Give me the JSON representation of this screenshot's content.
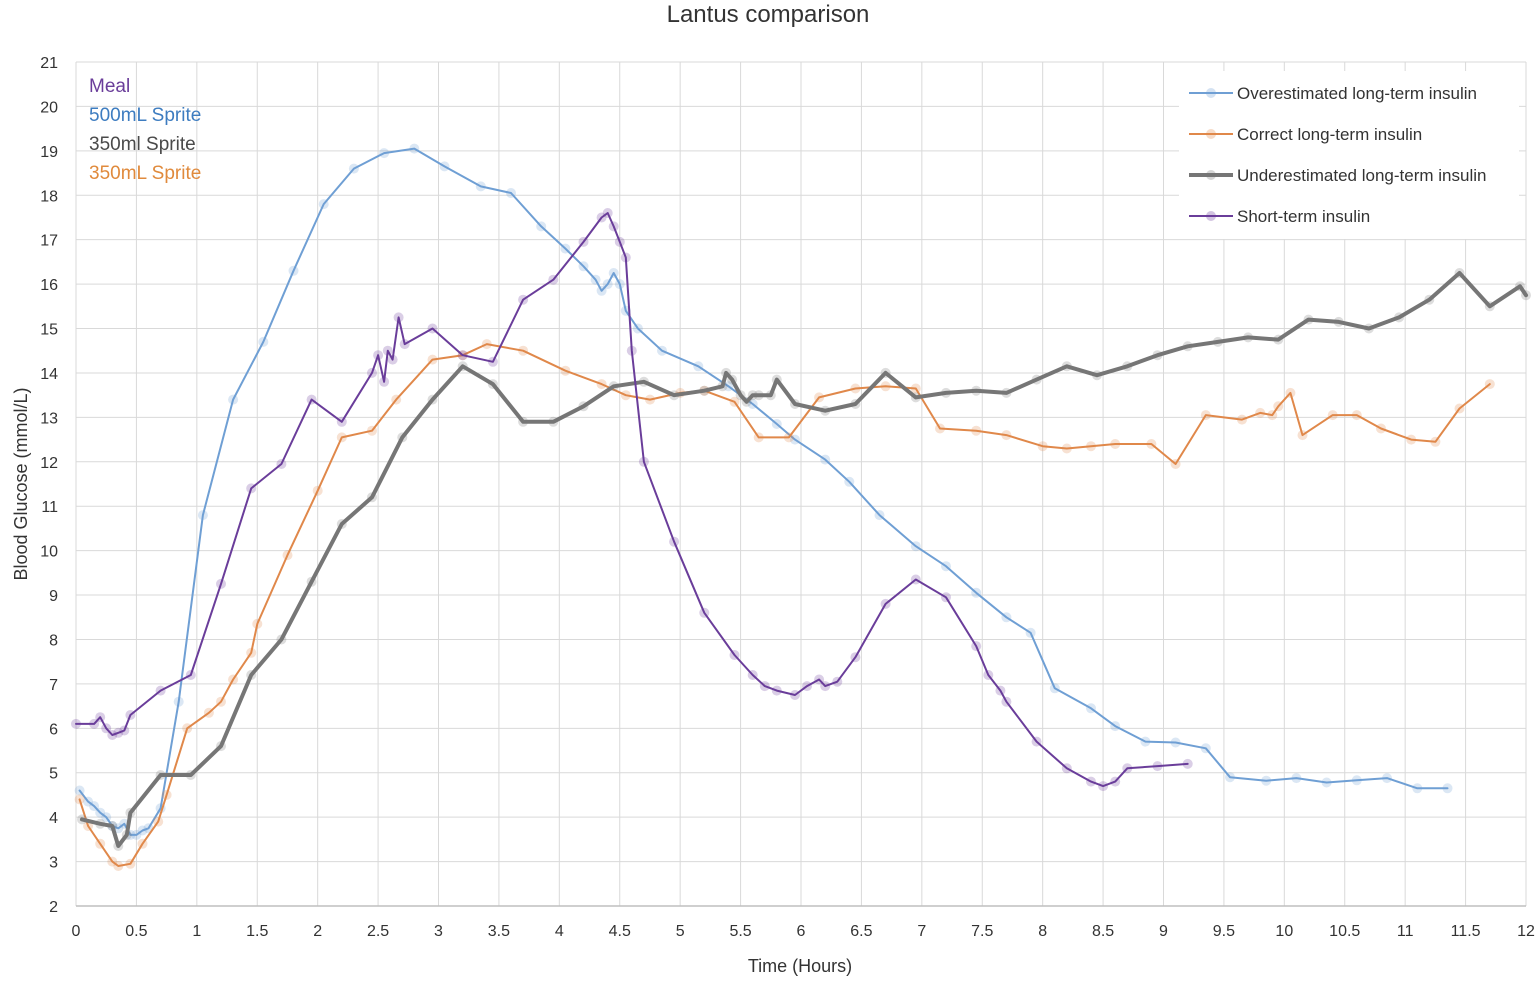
{
  "chart_data": {
    "type": "line",
    "title": "Lantus comparison",
    "xlabel": "Time (Hours)",
    "ylabel": "Blood Glucose (mmol/L)",
    "xlim": [
      0,
      12
    ],
    "ylim": [
      2,
      21
    ],
    "x_ticks": [
      "0",
      "0.5",
      "1",
      "1.5",
      "2",
      "2.5",
      "3",
      "3.5",
      "4",
      "4.5",
      "5",
      "5.5",
      "6",
      "6.5",
      "7",
      "7.5",
      "8",
      "8.5",
      "9",
      "9.5",
      "10",
      "10.5",
      "11",
      "11.5",
      "12"
    ],
    "y_ticks": [
      "2",
      "3",
      "4",
      "5",
      "6",
      "7",
      "8",
      "9",
      "10",
      "11",
      "12",
      "13",
      "14",
      "15",
      "16",
      "17",
      "18",
      "19",
      "20",
      "21"
    ],
    "grid": true,
    "legend_position": "top-right",
    "annotations": [
      {
        "text": "Meal",
        "color": "#6a3d9a"
      },
      {
        "text": "500mL Sprite",
        "color": "#3d7cc0"
      },
      {
        "text": "350ml Sprite",
        "color": "#4a4a4a"
      },
      {
        "text": "350mL Sprite",
        "color": "#e08a3c"
      }
    ],
    "series": [
      {
        "name": "Overestimated long-term insulin",
        "color": "#6f9fd4",
        "line_width": 2,
        "points": [
          [
            0.03,
            4.6
          ],
          [
            0.1,
            4.35
          ],
          [
            0.15,
            4.25
          ],
          [
            0.2,
            4.1
          ],
          [
            0.25,
            4.0
          ],
          [
            0.3,
            3.8
          ],
          [
            0.35,
            3.75
          ],
          [
            0.4,
            3.85
          ],
          [
            0.45,
            3.6
          ],
          [
            0.5,
            3.6
          ],
          [
            0.55,
            3.7
          ],
          [
            0.6,
            3.75
          ],
          [
            0.7,
            4.2
          ],
          [
            0.85,
            6.6
          ],
          [
            1.05,
            10.8
          ],
          [
            1.3,
            13.4
          ],
          [
            1.55,
            14.7
          ],
          [
            1.8,
            16.3
          ],
          [
            2.05,
            17.8
          ],
          [
            2.3,
            18.6
          ],
          [
            2.55,
            18.95
          ],
          [
            2.8,
            19.05
          ],
          [
            3.05,
            18.65
          ],
          [
            3.35,
            18.2
          ],
          [
            3.6,
            18.05
          ],
          [
            3.85,
            17.3
          ],
          [
            4.05,
            16.8
          ],
          [
            4.2,
            16.4
          ],
          [
            4.3,
            16.1
          ],
          [
            4.35,
            15.85
          ],
          [
            4.4,
            16.0
          ],
          [
            4.45,
            16.25
          ],
          [
            4.5,
            16.0
          ],
          [
            4.55,
            15.4
          ],
          [
            4.65,
            15.0
          ],
          [
            4.85,
            14.5
          ],
          [
            5.15,
            14.15
          ],
          [
            5.4,
            13.7
          ],
          [
            5.6,
            13.3
          ],
          [
            5.8,
            12.85
          ],
          [
            5.95,
            12.5
          ],
          [
            6.2,
            12.05
          ],
          [
            6.4,
            11.55
          ],
          [
            6.65,
            10.8
          ],
          [
            6.95,
            10.1
          ],
          [
            7.2,
            9.65
          ],
          [
            7.45,
            9.05
          ],
          [
            7.7,
            8.5
          ],
          [
            7.9,
            8.15
          ],
          [
            8.1,
            6.9
          ],
          [
            8.4,
            6.45
          ],
          [
            8.6,
            6.05
          ],
          [
            8.85,
            5.7
          ],
          [
            9.1,
            5.68
          ],
          [
            9.35,
            5.55
          ],
          [
            9.55,
            4.9
          ],
          [
            9.85,
            4.82
          ],
          [
            10.1,
            4.88
          ],
          [
            10.35,
            4.78
          ],
          [
            10.6,
            4.83
          ],
          [
            10.85,
            4.88
          ],
          [
            11.1,
            4.65
          ],
          [
            11.35,
            4.65
          ]
        ]
      },
      {
        "name": "Correct long-term insulin",
        "color": "#e0884a",
        "line_width": 2,
        "points": [
          [
            0.03,
            4.4
          ],
          [
            0.1,
            3.8
          ],
          [
            0.2,
            3.4
          ],
          [
            0.3,
            3.0
          ],
          [
            0.35,
            2.9
          ],
          [
            0.45,
            2.95
          ],
          [
            0.55,
            3.4
          ],
          [
            0.68,
            3.9
          ],
          [
            0.75,
            4.5
          ],
          [
            0.92,
            6.0
          ],
          [
            1.1,
            6.35
          ],
          [
            1.2,
            6.6
          ],
          [
            1.3,
            7.1
          ],
          [
            1.45,
            7.7
          ],
          [
            1.5,
            8.35
          ],
          [
            1.75,
            9.9
          ],
          [
            2.0,
            11.35
          ],
          [
            2.2,
            12.55
          ],
          [
            2.45,
            12.7
          ],
          [
            2.65,
            13.4
          ],
          [
            2.95,
            14.3
          ],
          [
            3.2,
            14.4
          ],
          [
            3.4,
            14.65
          ],
          [
            3.7,
            14.5
          ],
          [
            4.05,
            14.05
          ],
          [
            4.35,
            13.75
          ],
          [
            4.55,
            13.5
          ],
          [
            4.75,
            13.4
          ],
          [
            5.0,
            13.55
          ],
          [
            5.2,
            13.6
          ],
          [
            5.45,
            13.35
          ],
          [
            5.65,
            12.55
          ],
          [
            5.9,
            12.55
          ],
          [
            6.15,
            13.45
          ],
          [
            6.45,
            13.65
          ],
          [
            6.7,
            13.7
          ],
          [
            6.95,
            13.65
          ],
          [
            7.15,
            12.75
          ],
          [
            7.45,
            12.7
          ],
          [
            7.7,
            12.6
          ],
          [
            8.0,
            12.35
          ],
          [
            8.2,
            12.3
          ],
          [
            8.4,
            12.35
          ],
          [
            8.6,
            12.4
          ],
          [
            8.9,
            12.4
          ],
          [
            9.1,
            11.95
          ],
          [
            9.35,
            13.05
          ],
          [
            9.65,
            12.95
          ],
          [
            9.8,
            13.1
          ],
          [
            9.9,
            13.05
          ],
          [
            9.95,
            13.25
          ],
          [
            10.05,
            13.55
          ],
          [
            10.15,
            12.6
          ],
          [
            10.4,
            13.05
          ],
          [
            10.6,
            13.05
          ],
          [
            10.8,
            12.75
          ],
          [
            11.05,
            12.5
          ],
          [
            11.25,
            12.45
          ],
          [
            11.45,
            13.2
          ],
          [
            11.7,
            13.75
          ]
        ]
      },
      {
        "name": "Underestimated long-term insulin",
        "color": "#767676",
        "line_width": 4,
        "points": [
          [
            0.05,
            3.95
          ],
          [
            0.2,
            3.85
          ],
          [
            0.3,
            3.8
          ],
          [
            0.35,
            3.35
          ],
          [
            0.42,
            3.6
          ],
          [
            0.45,
            4.1
          ],
          [
            0.7,
            4.95
          ],
          [
            0.95,
            4.95
          ],
          [
            1.2,
            5.6
          ],
          [
            1.45,
            7.2
          ],
          [
            1.7,
            8.0
          ],
          [
            1.95,
            9.3
          ],
          [
            2.2,
            10.6
          ],
          [
            2.45,
            11.2
          ],
          [
            2.7,
            12.55
          ],
          [
            2.95,
            13.4
          ],
          [
            3.2,
            14.15
          ],
          [
            3.45,
            13.75
          ],
          [
            3.7,
            12.9
          ],
          [
            3.95,
            12.9
          ],
          [
            4.2,
            13.25
          ],
          [
            4.45,
            13.7
          ],
          [
            4.7,
            13.8
          ],
          [
            4.95,
            13.5
          ],
          [
            5.2,
            13.6
          ],
          [
            5.35,
            13.7
          ],
          [
            5.38,
            14.0
          ],
          [
            5.43,
            13.85
          ],
          [
            5.5,
            13.5
          ],
          [
            5.55,
            13.35
          ],
          [
            5.6,
            13.5
          ],
          [
            5.65,
            13.5
          ],
          [
            5.75,
            13.5
          ],
          [
            5.8,
            13.85
          ],
          [
            5.95,
            13.3
          ],
          [
            6.2,
            13.15
          ],
          [
            6.45,
            13.3
          ],
          [
            6.7,
            14.0
          ],
          [
            6.95,
            13.45
          ],
          [
            7.2,
            13.55
          ],
          [
            7.45,
            13.6
          ],
          [
            7.7,
            13.55
          ],
          [
            7.95,
            13.85
          ],
          [
            8.2,
            14.15
          ],
          [
            8.45,
            13.95
          ],
          [
            8.7,
            14.15
          ],
          [
            8.95,
            14.4
          ],
          [
            9.2,
            14.6
          ],
          [
            9.45,
            14.7
          ],
          [
            9.7,
            14.8
          ],
          [
            9.95,
            14.75
          ],
          [
            10.2,
            15.2
          ],
          [
            10.45,
            15.15
          ],
          [
            10.7,
            15.0
          ],
          [
            10.95,
            15.25
          ],
          [
            11.2,
            15.65
          ],
          [
            11.45,
            16.25
          ],
          [
            11.7,
            15.5
          ],
          [
            11.95,
            15.95
          ],
          [
            12.0,
            15.75
          ]
        ]
      },
      {
        "name": "Short-term insulin",
        "color": "#6a3d9a",
        "line_width": 2,
        "points": [
          [
            0.0,
            6.1
          ],
          [
            0.15,
            6.1
          ],
          [
            0.2,
            6.25
          ],
          [
            0.25,
            6.0
          ],
          [
            0.3,
            5.85
          ],
          [
            0.35,
            5.9
          ],
          [
            0.4,
            5.95
          ],
          [
            0.45,
            6.3
          ],
          [
            0.7,
            6.85
          ],
          [
            0.95,
            7.2
          ],
          [
            1.2,
            9.25
          ],
          [
            1.45,
            11.4
          ],
          [
            1.7,
            11.95
          ],
          [
            1.95,
            13.4
          ],
          [
            2.2,
            12.9
          ],
          [
            2.45,
            14.0
          ],
          [
            2.5,
            14.4
          ],
          [
            2.55,
            13.8
          ],
          [
            2.58,
            14.5
          ],
          [
            2.62,
            14.3
          ],
          [
            2.67,
            15.25
          ],
          [
            2.72,
            14.65
          ],
          [
            2.95,
            15.0
          ],
          [
            3.2,
            14.4
          ],
          [
            3.45,
            14.25
          ],
          [
            3.7,
            15.65
          ],
          [
            3.95,
            16.1
          ],
          [
            4.2,
            16.95
          ],
          [
            4.35,
            17.5
          ],
          [
            4.4,
            17.6
          ],
          [
            4.45,
            17.3
          ],
          [
            4.5,
            16.95
          ],
          [
            4.55,
            16.6
          ],
          [
            4.6,
            14.5
          ],
          [
            4.7,
            12.0
          ],
          [
            4.95,
            10.2
          ],
          [
            5.2,
            8.6
          ],
          [
            5.45,
            7.65
          ],
          [
            5.6,
            7.2
          ],
          [
            5.7,
            6.95
          ],
          [
            5.8,
            6.85
          ],
          [
            5.95,
            6.75
          ],
          [
            6.05,
            6.95
          ],
          [
            6.15,
            7.1
          ],
          [
            6.2,
            6.95
          ],
          [
            6.3,
            7.05
          ],
          [
            6.45,
            7.6
          ],
          [
            6.7,
            8.8
          ],
          [
            6.95,
            9.35
          ],
          [
            7.2,
            8.95
          ],
          [
            7.45,
            7.85
          ],
          [
            7.55,
            7.2
          ],
          [
            7.65,
            6.85
          ],
          [
            7.7,
            6.6
          ],
          [
            7.95,
            5.7
          ],
          [
            8.2,
            5.1
          ],
          [
            8.4,
            4.8
          ],
          [
            8.5,
            4.7
          ],
          [
            8.6,
            4.8
          ],
          [
            8.7,
            5.1
          ],
          [
            8.95,
            5.15
          ],
          [
            9.2,
            5.2
          ]
        ]
      }
    ]
  }
}
